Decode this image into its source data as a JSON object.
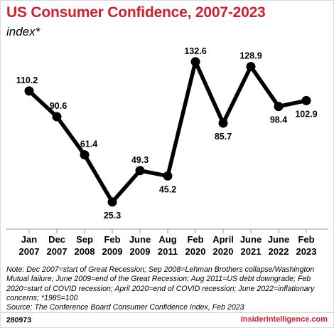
{
  "title": "US Consumer Confidence, 2007-2023",
  "subtitle": "index*",
  "note": "Note: Dec 2007=start of Great Recession; Sep 2008=Lehman Brothers collapse/Washington Mutual failure; June 2009=end of the Great Recession; Aug 2011=US debt downgrade; Feb 2020=start of COVID recession; April 2020=end of COVID recession; June 2022=inflationary concerns; *1985=100",
  "source": "Source: The Conference Board Consumer Confidence Index, Feb 2023",
  "footer": {
    "id": "280973",
    "brand": "InsiderIntelligence.com"
  },
  "colors": {
    "title": "#d0202e",
    "line": "#000000",
    "brand": "#d0202e"
  },
  "chart_data": {
    "type": "line",
    "title": "US Consumer Confidence, 2007-2023",
    "ylabel": "index*",
    "categories": [
      [
        "Jan",
        "2007"
      ],
      [
        "Dec",
        "2007"
      ],
      [
        "Sep",
        "2008"
      ],
      [
        "Feb",
        "2009"
      ],
      [
        "June",
        "2009"
      ],
      [
        "Aug",
        "2011"
      ],
      [
        "Feb",
        "2020"
      ],
      [
        "April",
        "2020"
      ],
      [
        "June",
        "2021"
      ],
      [
        "June",
        "2022"
      ],
      [
        "Feb",
        "2023"
      ]
    ],
    "values": [
      110.2,
      90.6,
      61.4,
      25.3,
      49.3,
      45.2,
      132.6,
      85.7,
      128.9,
      98.4,
      102.9
    ],
    "labels": [
      "110.2",
      "90.6",
      "61.4",
      "25.3",
      "49.3",
      "45.2",
      "132.6",
      "85.7",
      "128.9",
      "98.4",
      "102.9"
    ],
    "grid": false,
    "legend": "none"
  }
}
